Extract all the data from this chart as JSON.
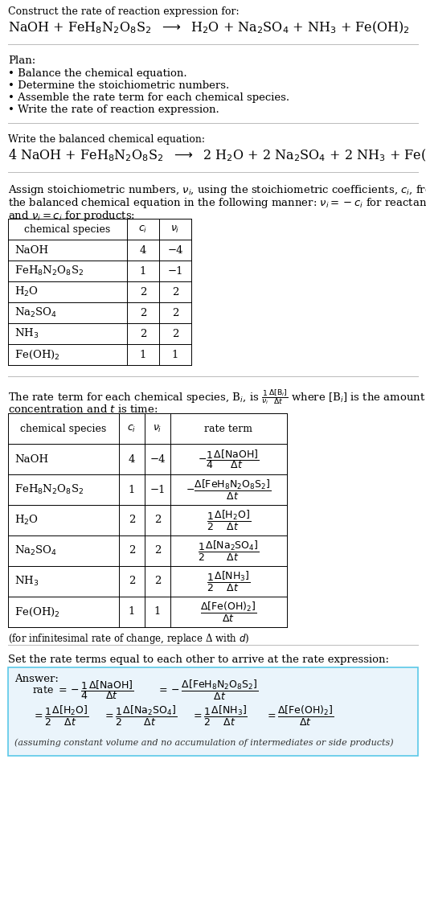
{
  "bg_color": "#ffffff",
  "text_color": "#000000",
  "title_line1": "Construct the rate of reaction expression for:",
  "plan_header": "Plan:",
  "plan_items": [
    "• Balance the chemical equation.",
    "• Determine the stoichiometric numbers.",
    "• Assemble the rate term for each chemical species.",
    "• Write the rate of reaction expression."
  ],
  "balanced_header": "Write the balanced chemical equation:",
  "assign_text1": "Assign stoichiometric numbers, $\\nu_i$, using the stoichiometric coefficients, $c_i$, from",
  "assign_text2": "the balanced chemical equation in the following manner: $\\nu_i = -c_i$ for reactants",
  "assign_text3": "and $\\nu_i = c_i$ for products:",
  "table1_headers": [
    "chemical species",
    "$c_i$",
    "$\\nu_i$"
  ],
  "table1_species": [
    "NaOH",
    "FeH$_8$N$_2$O$_8$S$_2$",
    "H$_2$O",
    "Na$_2$SO$_4$",
    "NH$_3$",
    "Fe(OH)$_2$"
  ],
  "table1_ci": [
    "4",
    "1",
    "2",
    "2",
    "2",
    "1"
  ],
  "table1_ni": [
    "−4",
    "−1",
    "2",
    "2",
    "2",
    "1"
  ],
  "rate_text1": "The rate term for each chemical species, B$_i$, is $\\frac{1}{\\nu_i}\\frac{\\Delta[\\mathrm{B}_i]}{\\Delta t}$ where [B$_i$] is the amount",
  "rate_text2": "concentration and $t$ is time:",
  "table2_headers": [
    "chemical species",
    "$c_i$",
    "$\\nu_i$",
    "rate term"
  ],
  "table2_species": [
    "NaOH",
    "FeH$_8$N$_2$O$_8$S$_2$",
    "H$_2$O",
    "Na$_2$SO$_4$",
    "NH$_3$",
    "Fe(OH)$_2$"
  ],
  "table2_ci": [
    "4",
    "1",
    "2",
    "2",
    "2",
    "1"
  ],
  "table2_ni": [
    "−4",
    "−1",
    "2",
    "2",
    "2",
    "1"
  ],
  "table2_rate": [
    "$-\\dfrac{1}{4}\\dfrac{\\Delta[\\mathrm{NaOH}]}{\\Delta t}$",
    "$-\\dfrac{\\Delta[\\mathrm{FeH_8N_2O_8S_2}]}{\\Delta t}$",
    "$\\dfrac{1}{2}\\dfrac{\\Delta[\\mathrm{H_2O}]}{\\Delta t}$",
    "$\\dfrac{1}{2}\\dfrac{\\Delta[\\mathrm{Na_2SO_4}]}{\\Delta t}$",
    "$\\dfrac{1}{2}\\dfrac{\\Delta[\\mathrm{NH_3}]}{\\Delta t}$",
    "$\\dfrac{\\Delta[\\mathrm{Fe(OH)_2}]}{\\Delta t}$"
  ],
  "infinitesimal_note": "(for infinitesimal rate of change, replace Δ with $d$)",
  "set_rate_text": "Set the rate terms equal to each other to arrive at the rate expression:",
  "answer_label": "Answer:",
  "answer_box_bg": "#eaf4fb",
  "answer_box_border": "#5bc8e8",
  "answer_line1a": "rate $= -\\dfrac{1}{4}\\dfrac{\\Delta[\\mathrm{NaOH}]}{\\Delta t}$",
  "answer_line1b": "$= -\\dfrac{\\Delta[\\mathrm{FeH_8N_2O_8S_2}]}{\\Delta t}$",
  "answer_line2a": "$= \\dfrac{1}{2}\\dfrac{\\Delta[\\mathrm{H_2O}]}{\\Delta t}$",
  "answer_line2b": "$= \\dfrac{1}{2}\\dfrac{\\Delta[\\mathrm{Na_2SO_4}]}{\\Delta t}$",
  "answer_line2c": "$= \\dfrac{1}{2}\\dfrac{\\Delta[\\mathrm{NH_3}]}{\\Delta t}$",
  "answer_line2d": "$= \\dfrac{\\Delta[\\mathrm{Fe(OH)_2}]}{\\Delta t}$",
  "answer_note": "(assuming constant volume and no accumulation of intermediates or side products)"
}
